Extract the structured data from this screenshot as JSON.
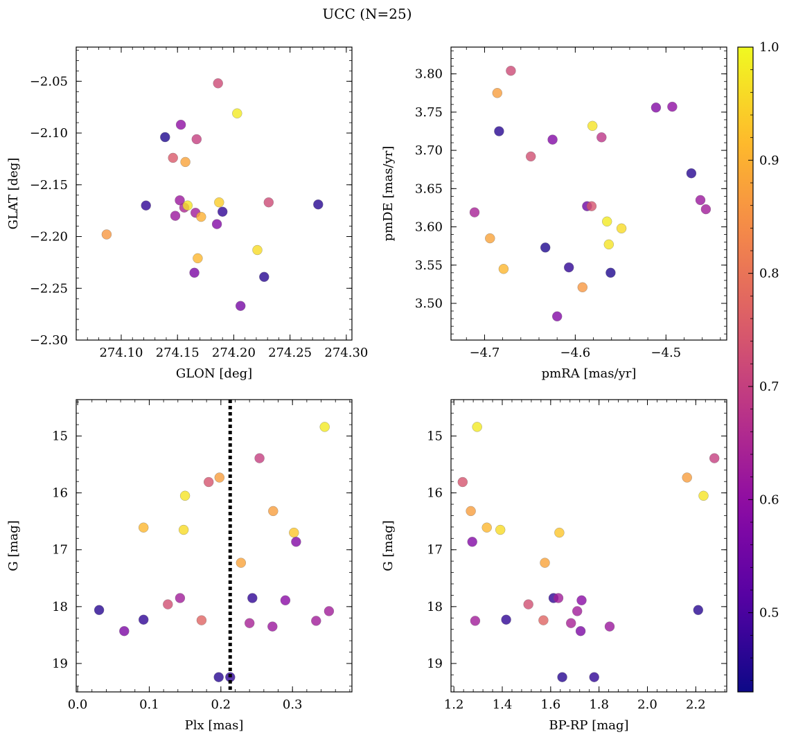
{
  "title": "UCC (N=25)",
  "colorbar": {
    "range": [
      0.43,
      1.0
    ],
    "ticks": [
      0.5,
      0.6,
      0.7,
      0.8,
      0.9,
      1.0
    ],
    "tick_labels": [
      "0.5",
      "0.6",
      "0.7",
      "0.8",
      "0.9",
      "1.0"
    ],
    "colormap": "plasma"
  },
  "chart_data": [
    {
      "type": "scatter",
      "xlabel": "GLON [deg]",
      "ylabel": "GLAT [deg]",
      "xlim": [
        274.06,
        274.305
      ],
      "ylim": [
        -2.3,
        -2.017
      ],
      "xticks": [
        274.1,
        274.15,
        274.2,
        274.25,
        274.3
      ],
      "xtick_labels": [
        "274.10",
        "274.15",
        "274.20",
        "274.25",
        "274.30"
      ],
      "yticks": [
        -2.3,
        -2.25,
        -2.2,
        -2.15,
        -2.1,
        -2.05
      ],
      "ytick_labels": [
        "−2.30",
        "−2.25",
        "−2.20",
        "−2.15",
        "−2.10",
        "−2.05"
      ],
      "x": [
        274.186,
        274.203,
        274.153,
        274.139,
        274.167,
        274.146,
        274.157,
        274.152,
        274.156,
        274.159,
        274.166,
        274.171,
        274.148,
        274.122,
        274.187,
        274.19,
        274.185,
        274.231,
        274.275,
        274.087,
        274.221,
        274.168,
        274.165,
        274.227,
        274.206
      ],
      "y": [
        -2.052,
        -2.081,
        -2.092,
        -2.104,
        -2.106,
        -2.124,
        -2.128,
        -2.165,
        -2.172,
        -2.17,
        -2.177,
        -2.181,
        -2.18,
        -2.17,
        -2.167,
        -2.176,
        -2.188,
        -2.167,
        -2.169,
        -2.198,
        -2.213,
        -2.221,
        -2.235,
        -2.239,
        -2.267
      ],
      "c": [
        0.72,
        0.98,
        0.6,
        0.45,
        0.7,
        0.75,
        0.88,
        0.62,
        0.65,
        0.97,
        0.63,
        0.9,
        0.62,
        0.47,
        0.94,
        0.47,
        0.58,
        0.72,
        0.46,
        0.86,
        0.96,
        0.91,
        0.57,
        0.46,
        0.56
      ]
    },
    {
      "type": "scatter",
      "xlabel": "pmRA [mas/yr]",
      "ylabel": "pmDE [mas/yr]",
      "xlim": [
        -4.737,
        -4.433
      ],
      "ylim": [
        3.452,
        3.835
      ],
      "xticks": [
        -4.7,
        -4.6,
        -4.5
      ],
      "xtick_labels": [
        "−4.7",
        "−4.6",
        "−4.5"
      ],
      "yticks": [
        3.5,
        3.55,
        3.6,
        3.65,
        3.7,
        3.75,
        3.8
      ],
      "ytick_labels": [
        "3.50",
        "3.55",
        "3.60",
        "3.65",
        "3.70",
        "3.75",
        "3.80"
      ],
      "x": [
        -4.671,
        -4.686,
        -4.581,
        -4.684,
        -4.625,
        -4.649,
        -4.571,
        -4.511,
        -4.493,
        -4.472,
        -4.711,
        -4.587,
        -4.582,
        -4.565,
        -4.549,
        -4.694,
        -4.563,
        -4.633,
        -4.607,
        -4.679,
        -4.561,
        -4.462,
        -4.456,
        -4.592,
        -4.62
      ],
      "y": [
        3.804,
        3.775,
        3.732,
        3.725,
        3.714,
        3.692,
        3.717,
        3.756,
        3.757,
        3.67,
        3.619,
        3.627,
        3.627,
        3.607,
        3.598,
        3.585,
        3.577,
        3.573,
        3.547,
        3.545,
        3.54,
        3.635,
        3.623,
        3.521,
        3.483
      ],
      "c": [
        0.72,
        0.87,
        0.97,
        0.46,
        0.58,
        0.73,
        0.68,
        0.58,
        0.6,
        0.46,
        0.64,
        0.55,
        0.74,
        0.98,
        0.96,
        0.88,
        0.97,
        0.45,
        0.47,
        0.91,
        0.45,
        0.62,
        0.63,
        0.86,
        0.58
      ]
    },
    {
      "type": "scatter",
      "xlabel": "Plx [mas]",
      "ylabel": "G [mag]",
      "xlim": [
        -0.002,
        0.383
      ],
      "ylim": [
        19.5,
        14.36
      ],
      "y_inverted": true,
      "xticks": [
        0.0,
        0.1,
        0.2,
        0.3
      ],
      "xtick_labels": [
        "0.0",
        "0.1",
        "0.2",
        "0.3"
      ],
      "yticks": [
        15,
        16,
        17,
        18,
        19
      ],
      "ytick_labels": [
        "15",
        "16",
        "17",
        "18",
        "19"
      ],
      "vline": {
        "x": 0.213,
        "style": "dotted"
      },
      "x": [
        0.345,
        0.254,
        0.183,
        0.198,
        0.15,
        0.273,
        0.092,
        0.148,
        0.302,
        0.305,
        0.228,
        0.03,
        0.065,
        0.092,
        0.126,
        0.143,
        0.173,
        0.244,
        0.29,
        0.24,
        0.272,
        0.333,
        0.351,
        0.197,
        0.213
      ],
      "y": [
        14.84,
        15.39,
        15.81,
        15.73,
        16.05,
        16.32,
        16.61,
        16.65,
        16.7,
        16.86,
        17.23,
        18.06,
        18.43,
        18.23,
        17.96,
        17.85,
        18.24,
        17.85,
        17.89,
        18.29,
        18.35,
        18.25,
        18.08,
        19.24,
        19.24
      ],
      "c": [
        0.98,
        0.7,
        0.74,
        0.87,
        0.97,
        0.87,
        0.91,
        0.96,
        0.93,
        0.58,
        0.88,
        0.46,
        0.57,
        0.47,
        0.73,
        0.63,
        0.77,
        0.47,
        0.59,
        0.64,
        0.62,
        0.63,
        0.63,
        0.46,
        0.47
      ]
    },
    {
      "type": "scatter",
      "xlabel": "BP-RP [mag]",
      "ylabel": "G [mag]",
      "xlim": [
        1.188,
        2.328
      ],
      "ylim": [
        19.5,
        14.36
      ],
      "y_inverted": true,
      "xticks": [
        1.2,
        1.4,
        1.6,
        1.8,
        2.0,
        2.2
      ],
      "xtick_labels": [
        "1.2",
        "1.4",
        "1.6",
        "1.8",
        "2.0",
        "2.2"
      ],
      "yticks": [
        15,
        16,
        17,
        18,
        19
      ],
      "ytick_labels": [
        "15",
        "16",
        "17",
        "18",
        "19"
      ],
      "x": [
        1.296,
        2.277,
        1.236,
        2.164,
        2.232,
        1.27,
        1.336,
        1.392,
        1.276,
        1.636,
        1.576,
        2.21,
        1.724,
        1.416,
        1.508,
        1.612,
        1.632,
        1.728,
        1.71,
        1.684,
        1.844,
        1.288,
        1.57,
        1.648,
        1.78
      ],
      "y": [
        14.84,
        15.39,
        15.81,
        15.73,
        16.05,
        16.32,
        16.61,
        16.65,
        16.86,
        16.7,
        17.23,
        18.06,
        18.43,
        18.23,
        17.96,
        17.85,
        17.85,
        17.89,
        18.08,
        18.29,
        18.35,
        18.25,
        18.24,
        19.24,
        19.24
      ],
      "c": [
        0.98,
        0.7,
        0.74,
        0.87,
        0.97,
        0.87,
        0.91,
        0.96,
        0.58,
        0.93,
        0.88,
        0.46,
        0.57,
        0.47,
        0.73,
        0.47,
        0.63,
        0.59,
        0.63,
        0.64,
        0.62,
        0.63,
        0.77,
        0.46,
        0.47
      ]
    }
  ]
}
